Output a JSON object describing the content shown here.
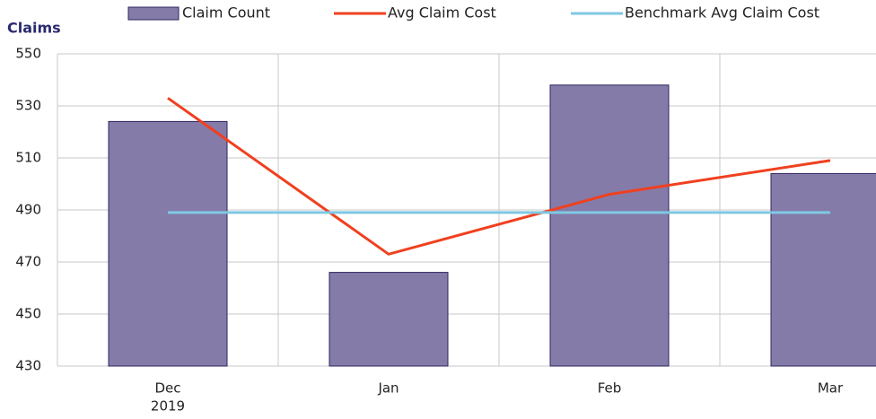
{
  "chart_data": {
    "type": "bar",
    "title": "Claims",
    "categories": [
      "Dec",
      "Jan",
      "Feb",
      "Mar"
    ],
    "year_label": "2019",
    "series": [
      {
        "name": "Claim Count",
        "type": "bar",
        "color": "#857ba8",
        "values": [
          524,
          466,
          538,
          504
        ]
      },
      {
        "name": "Avg Claim Cost",
        "type": "line",
        "color": "#f0401f",
        "values": [
          533,
          473,
          496,
          509
        ]
      },
      {
        "name": "Benchmark Avg Claim Cost",
        "type": "line",
        "color": "#7ec8e3",
        "values": [
          489,
          489,
          489,
          489
        ]
      }
    ],
    "ylim": [
      430,
      550
    ],
    "yticks": [
      430,
      450,
      470,
      490,
      510,
      530,
      550
    ],
    "grid": true
  }
}
